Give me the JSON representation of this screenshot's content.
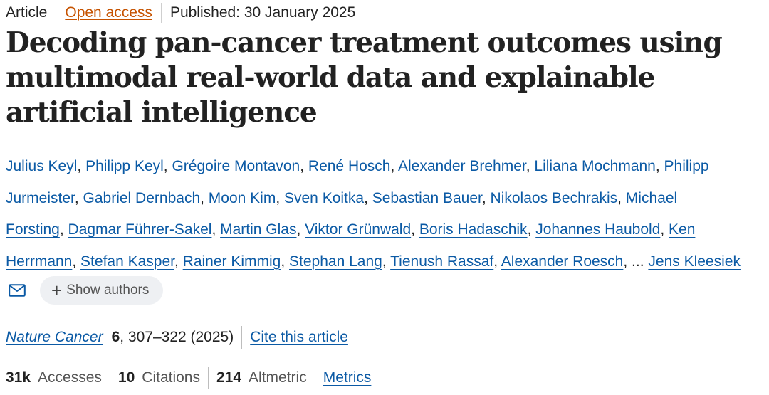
{
  "header": {
    "article_type": "Article",
    "access": "Open access",
    "published": "Published: 30 January 2025"
  },
  "title": "Decoding pan-cancer treatment outcomes using multimodal real-world data and explainable artificial intelligence",
  "authors": {
    "lines": [
      [
        "Julius Keyl",
        "Philipp Keyl",
        "Grégoire Montavon",
        "René Hosch",
        "Alexander Brehmer",
        "Liliana Mochmann",
        "Philipp"
      ],
      [
        "Jurmeister",
        "Gabriel Dernbach",
        "Moon Kim",
        "Sven Koitka",
        "Sebastian Bauer",
        "Nikolaos Bechrakis",
        "Michael"
      ],
      [
        "Forsting",
        "Dagmar Führer-Sakel",
        "Martin Glas",
        "Viktor Grünwald",
        "Boris Hadaschik",
        "Johannes Haubold",
        "Ken"
      ],
      [
        "Herrmann",
        "Stefan Kasper",
        "Rainer Kimmig",
        "Stephan Lang",
        "Tienush Rassaf",
        "Alexander Roesch"
      ]
    ],
    "ellipsis": "...",
    "last_author": "Jens Kleesiek",
    "show_authors_label": "Show authors",
    "show_authors_icon": "plus-icon",
    "email_icon": "mail-icon"
  },
  "citation": {
    "journal": "Nature Cancer",
    "volume": "6",
    "pages_year": ", 307–322 (2025)",
    "cite_label": "Cite this article"
  },
  "metrics": {
    "accesses_value": "31k",
    "accesses_label": "Accesses",
    "citations_value": "10",
    "citations_label": "Citations",
    "altmetric_value": "214",
    "altmetric_label": "Altmetric",
    "metrics_link": "Metrics"
  },
  "colors": {
    "link": "#0b5aa5",
    "open_access": "#c65301",
    "text": "#222222"
  }
}
